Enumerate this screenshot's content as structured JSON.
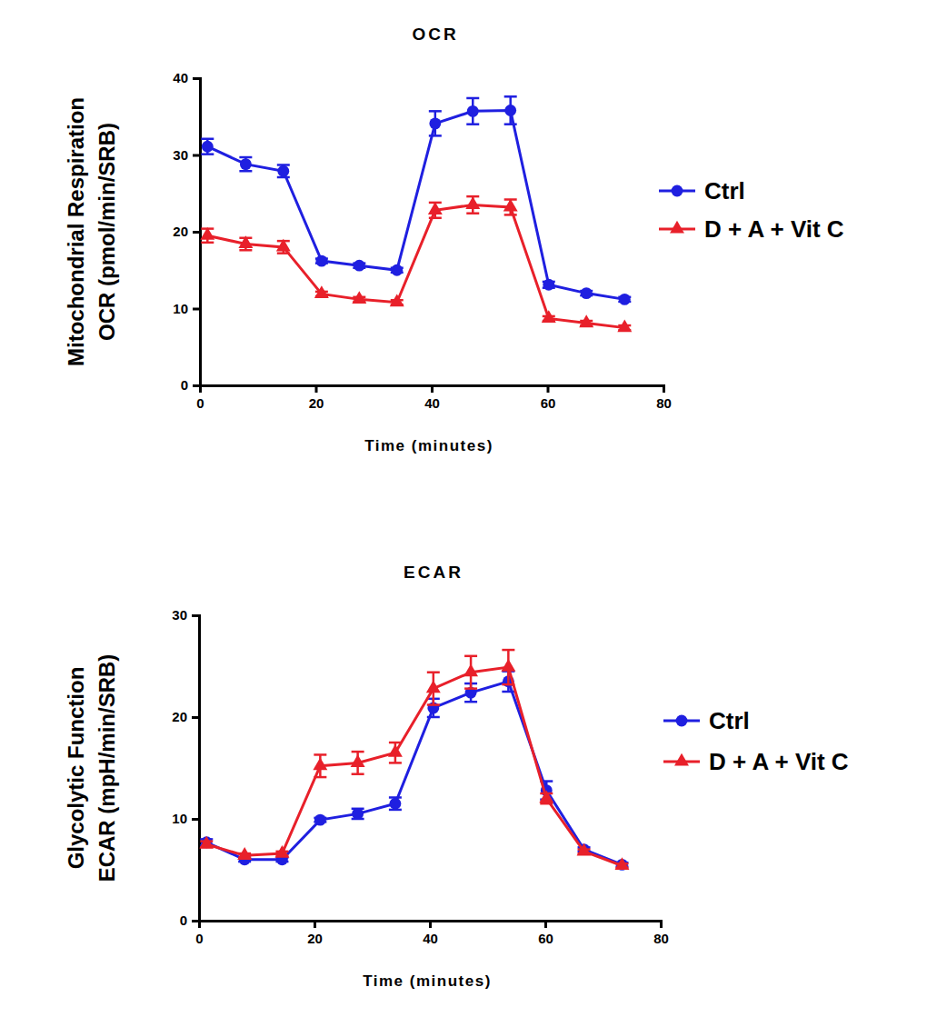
{
  "chart_data": [
    {
      "type": "line",
      "title": "OCR",
      "x_label": "Time (minutes)",
      "y_label": [
        "Mitochondrial Respiration",
        "OCR (pmol/min/SRB)"
      ],
      "x": [
        1.3,
        7.9,
        14.4,
        21,
        27.5,
        34,
        40.6,
        47.1,
        53.6,
        60.2,
        66.7,
        73.3
      ],
      "xlim": [
        0,
        80
      ],
      "xticks": [
        0,
        20,
        40,
        60,
        80
      ],
      "ylim": [
        0,
        40
      ],
      "yticks": [
        0,
        10,
        20,
        30,
        40
      ],
      "legend": "right",
      "series": [
        {
          "name": "Ctrl",
          "color": "#1f1fe0",
          "marker": "circle",
          "values": [
            31.1,
            28.8,
            27.9,
            16.2,
            15.6,
            15.0,
            34.1,
            35.7,
            35.8,
            13.1,
            12.0,
            11.2
          ],
          "errors": [
            1.0,
            0.9,
            0.8,
            0.3,
            0.3,
            0.3,
            1.6,
            1.7,
            1.8,
            0.4,
            0.3,
            0.3
          ]
        },
        {
          "name": "D + A + Vit C",
          "color": "#e8202a",
          "marker": "triangle",
          "values": [
            19.5,
            18.4,
            18.0,
            11.9,
            11.2,
            10.8,
            22.8,
            23.5,
            23.2,
            8.7,
            8.1,
            7.5
          ],
          "errors": [
            0.9,
            0.8,
            0.8,
            0.3,
            0.3,
            0.3,
            1.0,
            1.1,
            1.0,
            0.3,
            0.3,
            0.3
          ]
        }
      ]
    },
    {
      "type": "line",
      "title": "ECAR",
      "x_label": "Time (minutes)",
      "y_label": [
        "Glycolytic Function",
        "ECAR (mpH/min/SRB)"
      ],
      "x": [
        1.3,
        7.9,
        14.4,
        21,
        27.5,
        34,
        40.6,
        47.1,
        53.6,
        60.2,
        66.7,
        73.3
      ],
      "xlim": [
        0,
        80
      ],
      "xticks": [
        0,
        20,
        40,
        60,
        80
      ],
      "ylim": [
        0,
        30
      ],
      "yticks": [
        0,
        10,
        20,
        30
      ],
      "legend": "right",
      "series": [
        {
          "name": "Ctrl",
          "color": "#1f1fe0",
          "marker": "circle",
          "values": [
            7.7,
            6.0,
            6.0,
            9.9,
            10.5,
            11.5,
            20.9,
            22.4,
            23.5,
            12.8,
            7.0,
            5.5
          ],
          "errors": [
            0.3,
            0.2,
            0.2,
            0.2,
            0.5,
            0.6,
            0.9,
            0.9,
            1.0,
            0.9,
            0.2,
            0.2
          ]
        },
        {
          "name": "D + A + Vit C",
          "color": "#e8202a",
          "marker": "triangle",
          "values": [
            7.5,
            6.4,
            6.6,
            15.2,
            15.5,
            16.5,
            22.8,
            24.4,
            24.9,
            12.0,
            6.8,
            5.4
          ],
          "errors": [
            0.3,
            0.2,
            0.2,
            1.1,
            1.1,
            1.0,
            1.6,
            1.6,
            1.7,
            0.5,
            0.2,
            0.2
          ]
        }
      ]
    }
  ]
}
